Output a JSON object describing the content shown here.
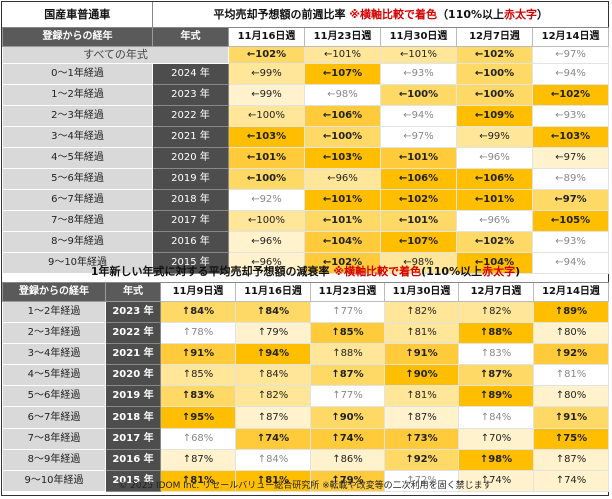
{
  "table1": {
    "corner_title": "国産車普通車",
    "caption_main": "平均売却予想額の前週比率",
    "caption_note": "※横軸比較で着色",
    "caption_paren_open": "（110%以上",
    "caption_red": "赤太字",
    "caption_paren_close": "）",
    "col_elapsed": "登録からの経年",
    "col_model_year": "年式",
    "weeks": [
      "11月16日週",
      "11月23日週",
      "11月30日週",
      "12月7日週",
      "12月14日週"
    ],
    "all_label": "すべての年式",
    "all_values": [
      "←102%",
      "←101%",
      "←101%",
      "←102%",
      "←97%"
    ],
    "rows": [
      {
        "elapsed": "0～1年経過",
        "year": "2024 年",
        "values": [
          "←99%",
          "←107%",
          "←93%",
          "←100%",
          "←94%"
        ]
      },
      {
        "elapsed": "1～2年経過",
        "year": "2023 年",
        "values": [
          "←99%",
          "←98%",
          "←100%",
          "←100%",
          "←102%"
        ]
      },
      {
        "elapsed": "2～3年経過",
        "year": "2022 年",
        "values": [
          "←100%",
          "←106%",
          "←94%",
          "←109%",
          "←93%"
        ]
      },
      {
        "elapsed": "3～4年経過",
        "year": "2021 年",
        "values": [
          "←103%",
          "←100%",
          "←97%",
          "←99%",
          "←103%"
        ]
      },
      {
        "elapsed": "4～5年経過",
        "year": "2020 年",
        "values": [
          "←101%",
          "←103%",
          "←101%",
          "←96%",
          "←97%"
        ]
      },
      {
        "elapsed": "5～6年経過",
        "year": "2019 年",
        "values": [
          "←100%",
          "←96%",
          "←106%",
          "←106%",
          "←89%"
        ]
      },
      {
        "elapsed": "6～7年経過",
        "year": "2018 年",
        "values": [
          "←92%",
          "←101%",
          "←102%",
          "←101%",
          "←97%"
        ]
      },
      {
        "elapsed": "7～8年経過",
        "year": "2017 年",
        "values": [
          "←100%",
          "←101%",
          "←101%",
          "←96%",
          "←105%"
        ]
      },
      {
        "elapsed": "8～9年経過",
        "year": "2016 年",
        "values": [
          "←96%",
          "←104%",
          "←107%",
          "←102%",
          "←93%"
        ]
      },
      {
        "elapsed": "9～10年経過",
        "year": "2015 年",
        "values": [
          "←96%",
          "←102%",
          "←98%",
          "←104%",
          "←94%"
        ]
      }
    ]
  },
  "table2": {
    "caption_main": "1年新しい年式に対する平均売却予想額の減衰率",
    "caption_note": "※横軸比較で着色",
    "caption_paren_open": "(110%以上",
    "caption_red": "赤太字",
    "caption_paren_close": ")",
    "col_elapsed": "登録からの経年",
    "col_model_year": "年式",
    "weeks": [
      "11月9日週",
      "11月16日週",
      "11月23日週",
      "11月30日週",
      "12月7日週",
      "12月14日週"
    ],
    "rows": [
      {
        "elapsed": "1～2年経過",
        "year": "2023 年",
        "values": [
          "↑84%",
          "↑84%",
          "↑77%",
          "↑82%",
          "↑82%",
          "↑89%"
        ]
      },
      {
        "elapsed": "2～3年経過",
        "year": "2022 年",
        "values": [
          "↑78%",
          "↑79%",
          "↑85%",
          "↑81%",
          "↑88%",
          "↑80%"
        ]
      },
      {
        "elapsed": "3～4年経過",
        "year": "2021 年",
        "values": [
          "↑91%",
          "↑94%",
          "↑88%",
          "↑91%",
          "↑83%",
          "↑92%"
        ]
      },
      {
        "elapsed": "4～5年経過",
        "year": "2020 年",
        "values": [
          "↑85%",
          "↑84%",
          "↑87%",
          "↑90%",
          "↑87%",
          "↑81%"
        ]
      },
      {
        "elapsed": "5～6年経過",
        "year": "2019 年",
        "values": [
          "↑83%",
          "↑82%",
          "↑77%",
          "↑81%",
          "↑89%",
          "↑80%"
        ]
      },
      {
        "elapsed": "6～7年経過",
        "year": "2018 年",
        "values": [
          "↑95%",
          "↑87%",
          "↑90%",
          "↑87%",
          "↑84%",
          "↑91%"
        ]
      },
      {
        "elapsed": "7～8年経過",
        "year": "2017 年",
        "values": [
          "↑68%",
          "↑74%",
          "↑74%",
          "↑73%",
          "↑70%",
          "↑75%"
        ]
      },
      {
        "elapsed": "8～9年経過",
        "year": "2016 年",
        "values": [
          "↑87%",
          "↑84%",
          "↑86%",
          "↑92%",
          "↑98%",
          "↑87%"
        ]
      },
      {
        "elapsed": "9～10年経過",
        "year": "2015 年",
        "values": [
          "↑81%",
          "↑81%",
          "↑79%",
          "↑72%",
          "↑74%",
          "↑74%"
        ]
      }
    ]
  },
  "colors": {
    "heat_scale": [
      "#ffffff",
      "#fff2cc",
      "#ffe699",
      "#ffd966",
      "#ffcb3a",
      "#ffbf00"
    ],
    "header_dark": "#5a5a5a",
    "label_gray": "#d9d9d9",
    "accent_red": "#d40000"
  },
  "footer": "© 2025 IDOM Inc. リセールバリュー総合研究所 ※転載や改変等の二次利用を固く禁じます"
}
